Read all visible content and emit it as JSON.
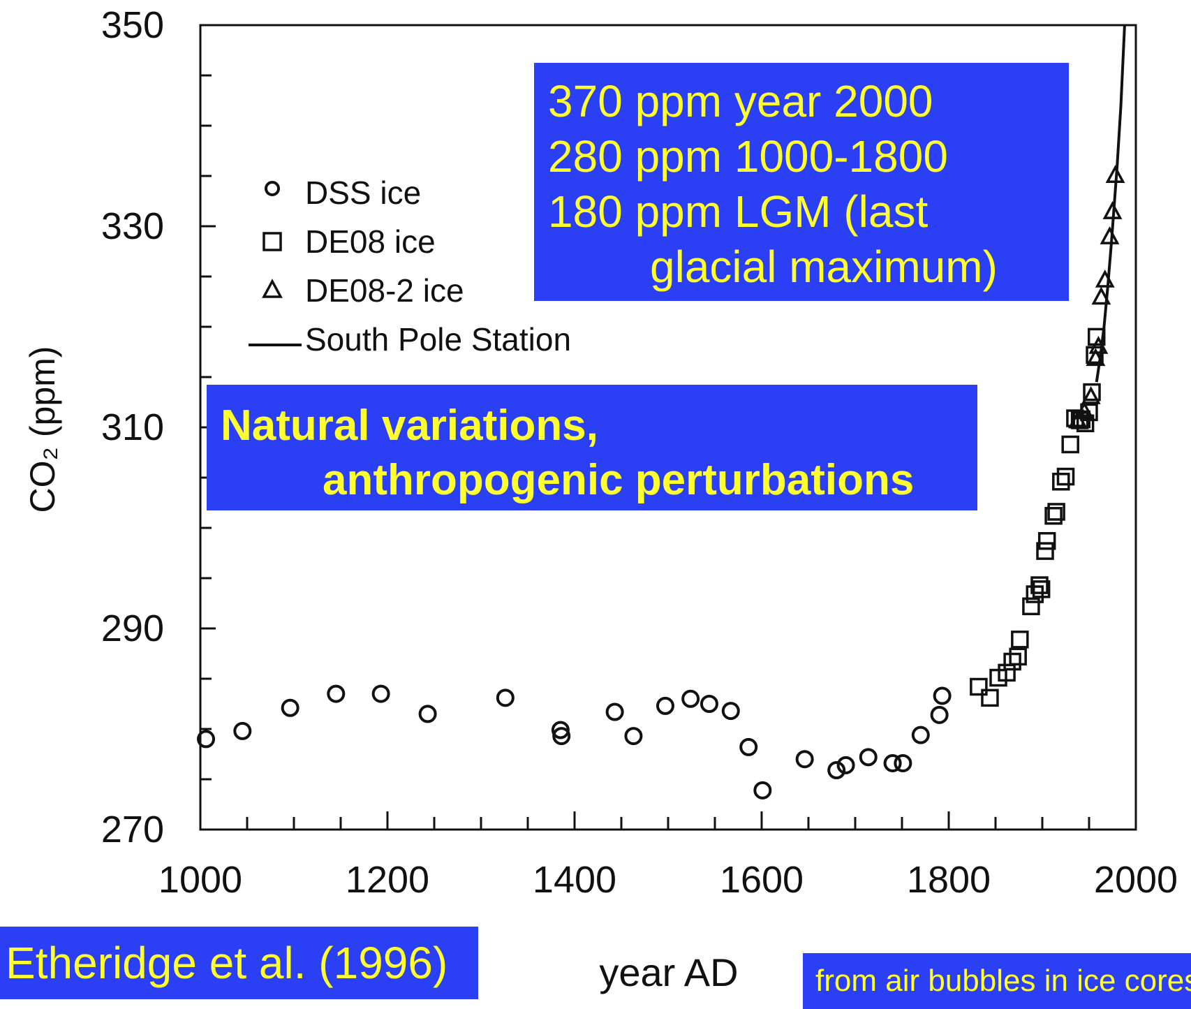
{
  "chart_data": {
    "type": "scatter",
    "xlabel": "year AD",
    "ylabel": "CO₂ (ppm)",
    "xlim": [
      1000,
      2000
    ],
    "ylim": [
      270,
      350
    ],
    "x_ticks": [
      1000,
      1200,
      1400,
      1600,
      1800,
      2000
    ],
    "y_ticks": [
      270,
      290,
      310,
      330,
      350
    ],
    "legend_position": "upper-left",
    "grid": false,
    "series": [
      {
        "name": "DSS ice",
        "marker": "circle",
        "x": [
          1006,
          1045,
          1096,
          1145,
          1193,
          1243,
          1326,
          1385,
          1386,
          1443,
          1463,
          1497,
          1524,
          1544,
          1567,
          1586,
          1601,
          1646,
          1680,
          1690,
          1714,
          1740,
          1751,
          1770,
          1790,
          1793
        ],
        "y": [
          279.0,
          279.8,
          282.1,
          283.5,
          283.5,
          281.5,
          283.1,
          279.9,
          279.3,
          281.7,
          279.3,
          282.3,
          283.0,
          282.5,
          281.8,
          278.2,
          273.9,
          277.0,
          275.9,
          276.4,
          277.2,
          276.6,
          276.6,
          279.4,
          281.4,
          283.3
        ]
      },
      {
        "name": "DE08 ice",
        "marker": "square",
        "x": [
          1832,
          1844,
          1853,
          1862,
          1868,
          1874,
          1876,
          1888,
          1892,
          1897,
          1899,
          1903,
          1905,
          1912,
          1915,
          1920,
          1925,
          1930,
          1935,
          1940,
          1942,
          1946,
          1950,
          1953,
          1956,
          1958
        ],
        "y": [
          284.2,
          283.1,
          285.1,
          285.6,
          286.7,
          287.2,
          288.9,
          292.2,
          293.4,
          294.3,
          293.9,
          297.7,
          298.7,
          301.2,
          301.6,
          304.6,
          305.1,
          308.3,
          310.9,
          310.7,
          310.8,
          310.4,
          311.5,
          313.5,
          317.2,
          319.0
        ]
      },
      {
        "name": "DE08-2 ice",
        "marker": "triangle",
        "x": [
          1938,
          1945,
          1952,
          1957,
          1960,
          1963,
          1967,
          1972,
          1975,
          1978
        ],
        "y": [
          310.6,
          311.5,
          313.0,
          316.8,
          318.0,
          322.9,
          324.6,
          328.9,
          331.4,
          335.0
        ]
      },
      {
        "name": "South Pole Station",
        "marker": "line",
        "x": [
          1958,
          1962,
          1966,
          1970,
          1974,
          1978,
          1980,
          1984,
          1988
        ],
        "y": [
          314.5,
          317.0,
          320.0,
          324.0,
          328.5,
          333.5,
          336.0,
          342.0,
          350.0
        ]
      }
    ]
  },
  "annotations": {
    "info_lines": [
      "370 ppm  year 2000",
      "280 ppm  1000-1800",
      "180 ppm  LGM (last",
      "glacial maximum)"
    ],
    "natural_lines": [
      "Natural variations,",
      "anthropogenic perturbations"
    ],
    "citation": "Etheridge et al. (1996)",
    "source": "from air bubbles in ice cores"
  },
  "colors": {
    "box": "#2b3ff5",
    "box_text": "#ffff2e",
    "ink": "#111111"
  }
}
